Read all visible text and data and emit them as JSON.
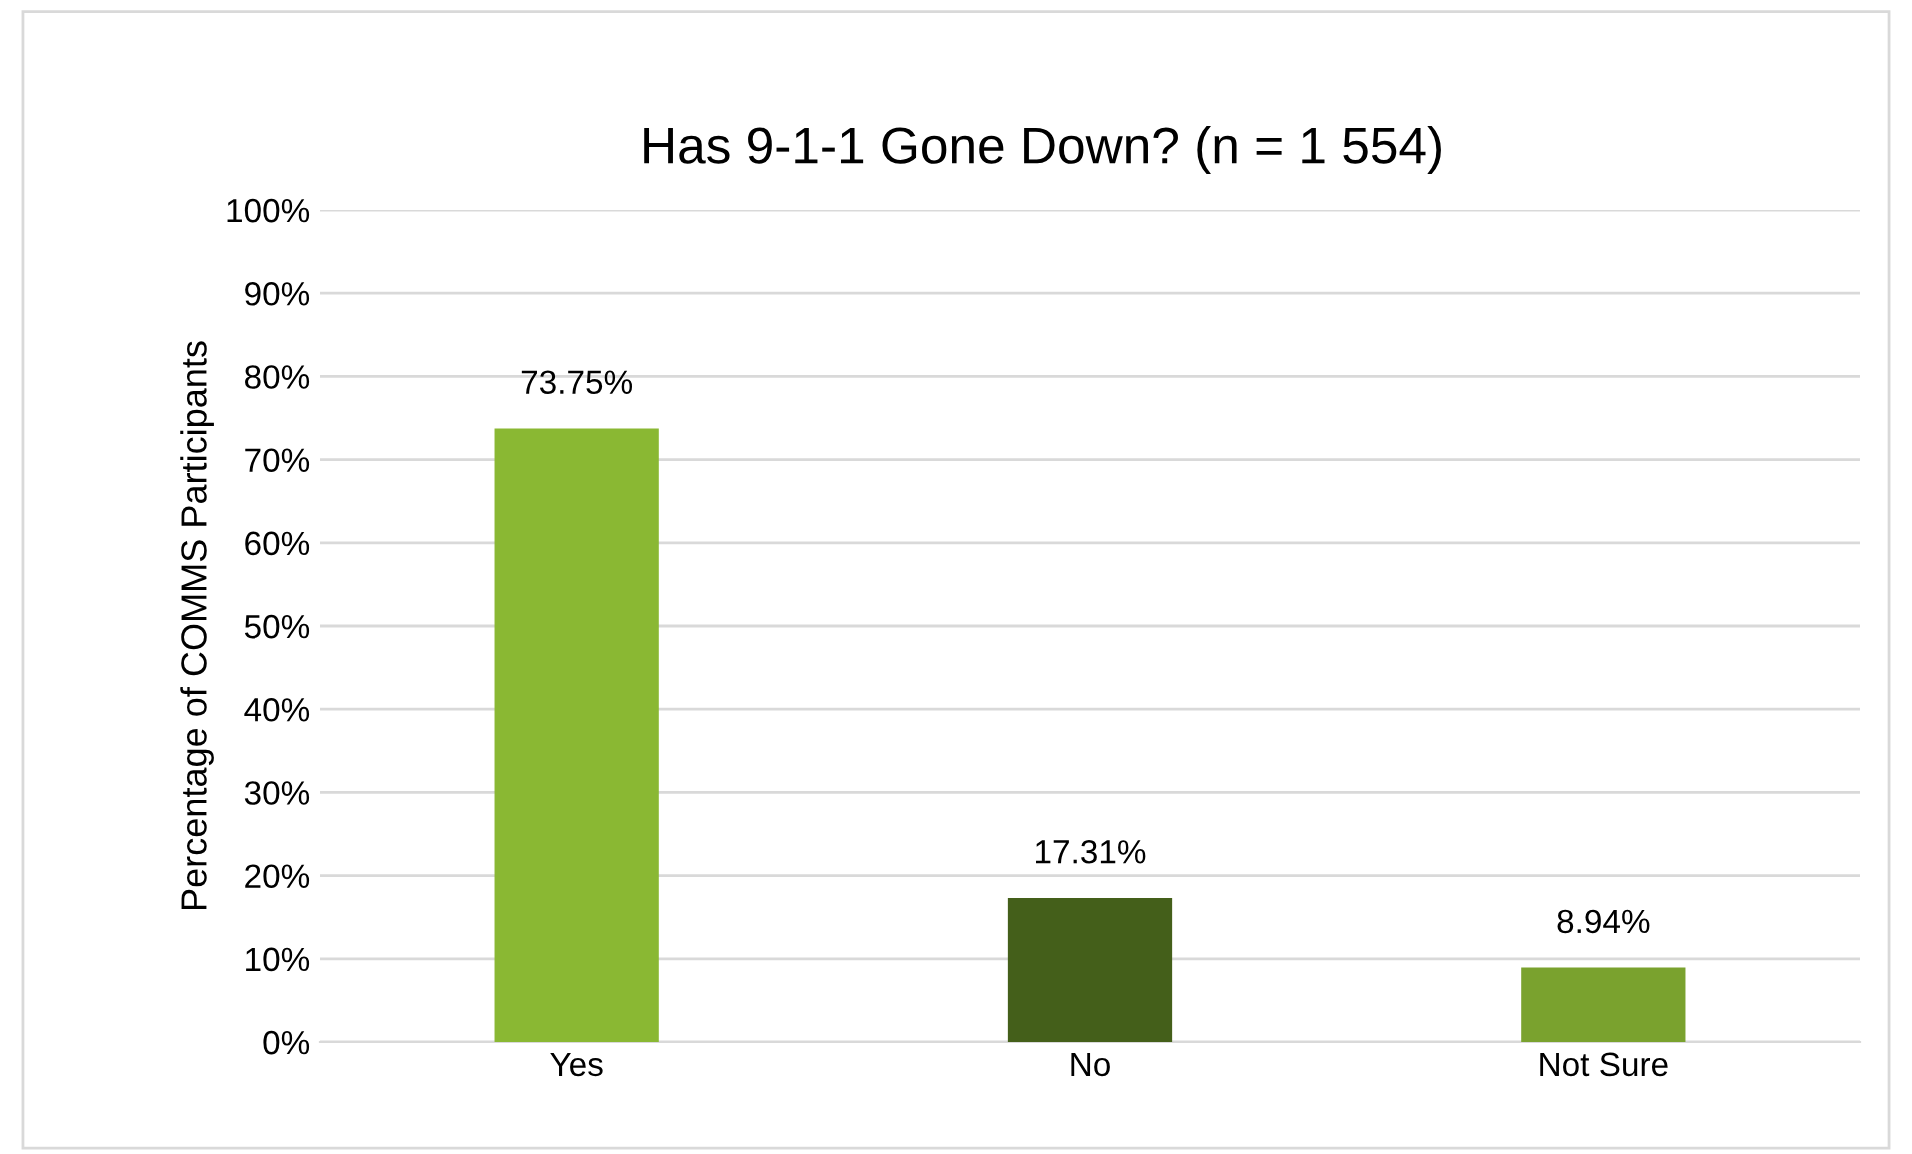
{
  "chart_data": {
    "type": "bar",
    "title": "Has 9-1-1 Gone Down? (n = 1 554)",
    "ylabel": "Percentage of COMMS Participants",
    "categories": [
      "Yes",
      "No",
      "Not Sure"
    ],
    "values": [
      73.75,
      17.31,
      8.94
    ],
    "colors": [
      "#8ab833",
      "#445f1a",
      "#7aa22e"
    ],
    "value_labels": [
      "73.75%",
      "17.31%",
      "8.94%"
    ],
    "ylim": [
      0,
      100
    ],
    "yticks": [
      {
        "value": 0,
        "label": "0%"
      },
      {
        "value": 10,
        "label": "10%"
      },
      {
        "value": 20,
        "label": "20%"
      },
      {
        "value": 30,
        "label": "30%"
      },
      {
        "value": 40,
        "label": "40%"
      },
      {
        "value": 50,
        "label": "50%"
      },
      {
        "value": 60,
        "label": "60%"
      },
      {
        "value": 70,
        "label": "70%"
      },
      {
        "value": 80,
        "label": "80%"
      },
      {
        "value": 90,
        "label": "90%"
      },
      {
        "value": 100,
        "label": "100%"
      }
    ],
    "grid": "y",
    "legend": false
  }
}
